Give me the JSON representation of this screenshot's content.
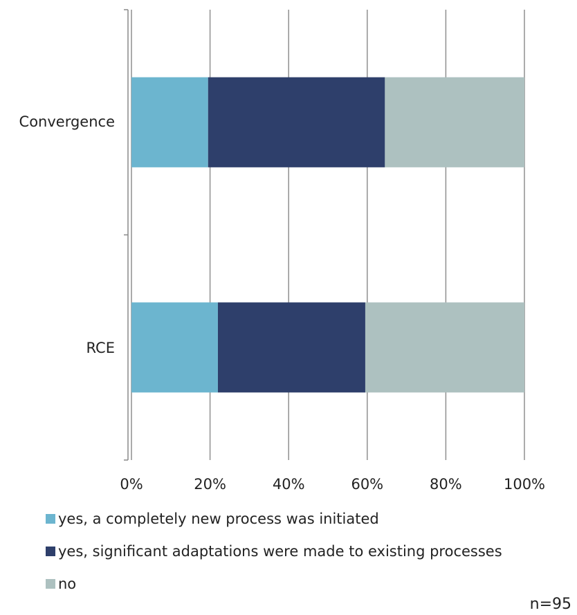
{
  "chart_data": {
    "type": "bar",
    "orientation": "horizontal",
    "stacked": true,
    "normalized": true,
    "categories": [
      "Convergence",
      "RCE"
    ],
    "series": [
      {
        "name": "yes, a completely new process was initiated",
        "color": "#6cb5cf",
        "values": [
          19.5,
          22
        ]
      },
      {
        "name": "yes, significant adaptations were made to existing processes",
        "color": "#2e3f6b",
        "values": [
          45,
          37.5
        ]
      },
      {
        "name": "no",
        "color": "#adc1c0",
        "values": [
          35.5,
          40.5
        ]
      }
    ],
    "xlim": [
      0,
      100
    ],
    "xticks": [
      "0%",
      "20%",
      "40%",
      "60%",
      "80%",
      "100%"
    ],
    "grid": true,
    "legend_position": "bottom-left",
    "note": "n=95"
  }
}
